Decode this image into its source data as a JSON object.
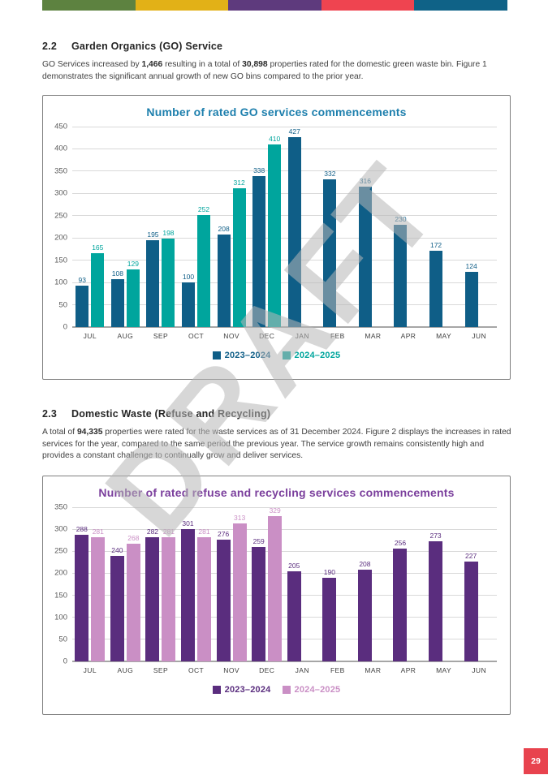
{
  "page": {
    "top_bar_colors": [
      "#5d8240",
      "#e2b117",
      "#5e3a7d",
      "#ef4450",
      "#0f6287"
    ],
    "watermark": "DRAFT",
    "page_number": "29",
    "page_number_bg": "#e8434e"
  },
  "section_go": {
    "number": "2.2",
    "title": "Garden Organics (GO) Service",
    "body": [
      {
        "t": "GO Services increased by ",
        "b": false
      },
      {
        "t": "1,466",
        "b": true
      },
      {
        "t": " resulting in a total of ",
        "b": false
      },
      {
        "t": "30,898",
        "b": true
      },
      {
        "t": " properties rated for the domestic green waste bin. Figure 1 demonstrates the significant annual growth of new GO bins compared to the prior year.",
        "b": false
      }
    ]
  },
  "section_dw": {
    "number": "2.3",
    "title": "Domestic Waste (Refuse and Recycling)",
    "body": [
      {
        "t": "A total of ",
        "b": false
      },
      {
        "t": "94,335",
        "b": true
      },
      {
        "t": " properties were rated for the waste services as of 31 December 2024. Figure 2 displays the increases in rated services for the year, compared to the same period the previous year. The service growth remains consistently high and provides a constant challenge to continually grow and deliver services.",
        "b": false
      }
    ]
  },
  "chart_data": [
    {
      "type": "bar",
      "title": "Number of rated GO services commencements",
      "title_color": "#1d7fad",
      "categories": [
        "JUL",
        "AUG",
        "SEP",
        "OCT",
        "NOV",
        "DEC",
        "JAN",
        "FEB",
        "MAR",
        "APR",
        "MAY",
        "JUN"
      ],
      "series": [
        {
          "name": "2023–2024",
          "color": "#0f5e87",
          "values": [
            93,
            108,
            195,
            100,
            208,
            338,
            427,
            332,
            316,
            230,
            172,
            124
          ]
        },
        {
          "name": "2024–2025",
          "color": "#00a59d",
          "values": [
            165,
            129,
            198,
            252,
            312,
            410,
            null,
            null,
            null,
            null,
            null,
            null
          ]
        }
      ],
      "ylim": [
        0,
        450
      ],
      "ytick_step": 50,
      "grid": true,
      "legend_position": "bottom",
      "value_labels": true
    },
    {
      "type": "bar",
      "title": "Number of rated refuse and recycling services commencements",
      "title_color": "#7a3e9c",
      "categories": [
        "JUL",
        "AUG",
        "SEP",
        "OCT",
        "NOV",
        "DEC",
        "JAN",
        "FEB",
        "MAR",
        "APR",
        "MAY",
        "JUN"
      ],
      "series": [
        {
          "name": "2023–2024",
          "color": "#5a2d7e",
          "values": [
            288,
            240,
            282,
            301,
            276,
            259,
            205,
            190,
            208,
            256,
            273,
            227
          ]
        },
        {
          "name": "2024–2025",
          "color": "#ca8fc5",
          "values": [
            281,
            268,
            281,
            281,
            313,
            329,
            null,
            null,
            null,
            null,
            null,
            null
          ]
        }
      ],
      "ylim": [
        0,
        350
      ],
      "ytick_step": 50,
      "grid": true,
      "legend_position": "bottom",
      "value_labels": true
    }
  ]
}
